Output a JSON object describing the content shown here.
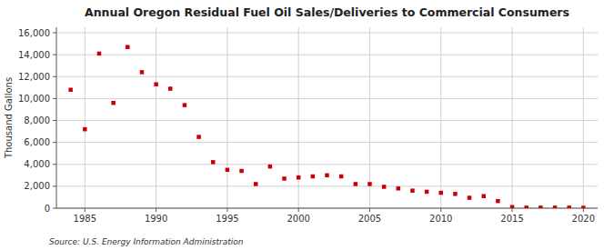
{
  "chart_data": {
    "type": "scatter",
    "title": "Annual Oregon Residual Fuel Oil Sales/Deliveries to Commercial Consumers",
    "ylabel": "Thousand Gallons",
    "annotations": [
      "Source: U.S. Energy Information Administration"
    ],
    "x": [
      1984,
      1985,
      1986,
      1987,
      1988,
      1989,
      1990,
      1991,
      1992,
      1993,
      1994,
      1995,
      1996,
      1997,
      1998,
      1999,
      2000,
      2001,
      2002,
      2003,
      2004,
      2005,
      2006,
      2007,
      2008,
      2009,
      2010,
      2011,
      2012,
      2013,
      2014,
      2015,
      2016,
      2017,
      2018,
      2019,
      2020
    ],
    "values": [
      10800,
      7200,
      14100,
      9600,
      14700,
      12400,
      11300,
      10900,
      9400,
      6500,
      4200,
      3500,
      3400,
      2200,
      3800,
      2700,
      2800,
      2900,
      3000,
      2900,
      2200,
      2200,
      1950,
      1800,
      1600,
      1500,
      1400,
      1300,
      950,
      1100,
      650,
      100,
      50,
      50,
      50,
      50,
      40
    ],
    "color": "#cc0000",
    "marker": "square",
    "grid": true,
    "xlim": [
      1983,
      2021
    ],
    "ylim": [
      0,
      16500
    ],
    "xticks": [
      1985,
      1990,
      1995,
      2000,
      2005,
      2010,
      2015,
      2020
    ],
    "yticks": [
      0,
      {
        "value": 2000,
        "label": "2,000"
      },
      {
        "value": 4000,
        "label": "4,000"
      },
      {
        "value": 6000,
        "label": "6,000"
      },
      {
        "value": 8000,
        "label": "8,000"
      },
      {
        "value": 10000,
        "label": "10,000"
      },
      {
        "value": 12000,
        "label": "12,000"
      },
      {
        "value": 14000,
        "label": "14,000"
      },
      {
        "value": 16000,
        "label": "16,000"
      }
    ]
  }
}
